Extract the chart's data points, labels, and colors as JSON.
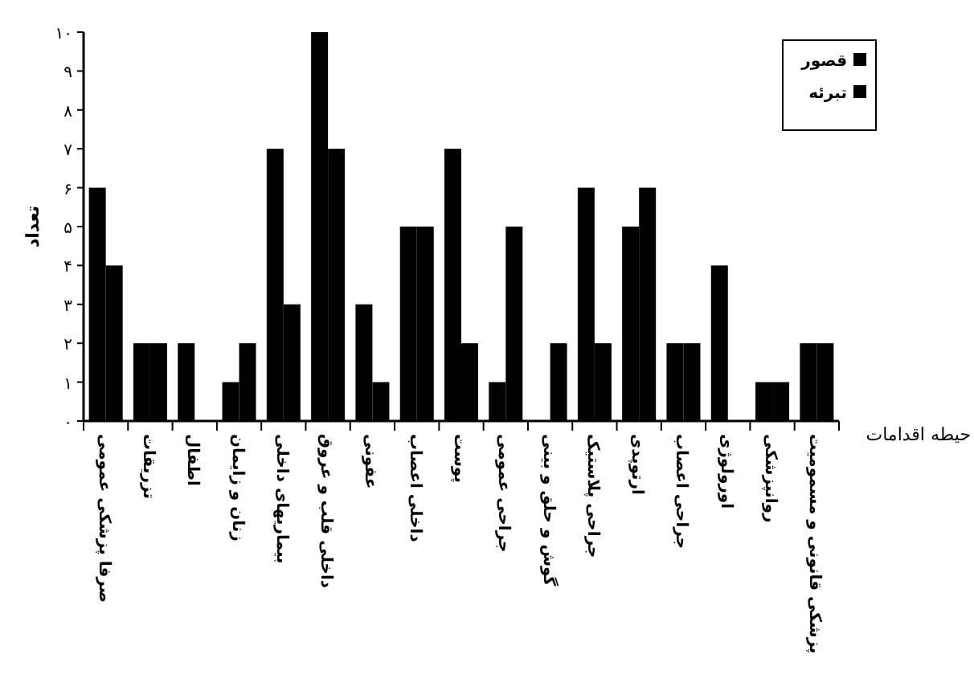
{
  "chart_data": {
    "type": "bar",
    "categories": [
      "صرفا پزشکی عمومی",
      "تزریقات",
      "اطفال",
      "زنان و زایمان",
      "بیماریهای داخلی",
      "داخلی قلب و عروق",
      "عفونی",
      "داخلی اعصاب",
      "پوست",
      "جراحی عمومی",
      "گوش و حلق و بینی",
      "جراحی پلاستیک",
      "ارتوپدی",
      "جراحی اعصاب",
      "اورولوژی",
      "روانپزشکی",
      "پزشکی قانونی و مسمومیت"
    ],
    "series": [
      {
        "name": "قصور",
        "color": "#000000",
        "values": [
          6,
          2,
          2,
          1,
          7,
          10,
          3,
          5,
          7,
          1,
          0,
          6,
          5,
          2,
          4,
          1,
          2
        ]
      },
      {
        "name": "تبرئه",
        "color": "#000000",
        "values": [
          4,
          2,
          0,
          2,
          3,
          7,
          1,
          5,
          2,
          5,
          2,
          2,
          6,
          2,
          0,
          1,
          2
        ]
      }
    ],
    "ylim": [
      0,
      10
    ],
    "yticks": [
      {
        "value": 0,
        "label": "۰"
      },
      {
        "value": 1,
        "label": "۱"
      },
      {
        "value": 2,
        "label": "۲"
      },
      {
        "value": 3,
        "label": "۳"
      },
      {
        "value": 4,
        "label": "۴"
      },
      {
        "value": 5,
        "label": "۵"
      },
      {
        "value": 6,
        "label": "۶"
      },
      {
        "value": 7,
        "label": "۷"
      },
      {
        "value": 8,
        "label": "۸"
      },
      {
        "value": 9,
        "label": "۹"
      },
      {
        "value": 10,
        "label": "۱۰"
      }
    ],
    "ylabel": "تعداد",
    "xlabel": "حیطه اقدامات",
    "legend": "top right"
  }
}
